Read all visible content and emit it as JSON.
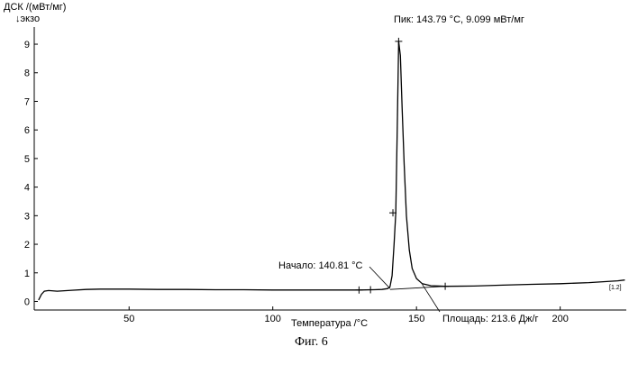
{
  "chart_data": {
    "type": "line",
    "ylabel_line1": "ДСК /(мВт/мг)",
    "ylabel_line2": "↓экзо",
    "xlabel": "Температура /°C",
    "caption": "Фиг. 6",
    "xlim": [
      17,
      223
    ],
    "ylim": [
      -0.3,
      9.6
    ],
    "x_ticks": [
      50,
      100,
      150,
      200
    ],
    "y_ticks": [
      0,
      1,
      2,
      3,
      4,
      5,
      6,
      7,
      8,
      9
    ],
    "series": [
      {
        "points": [
          [
            18.5,
            0.05
          ],
          [
            19.5,
            0.25
          ],
          [
            20.5,
            0.36
          ],
          [
            22,
            0.38
          ],
          [
            25,
            0.36
          ],
          [
            30,
            0.39
          ],
          [
            35,
            0.42
          ],
          [
            40,
            0.43
          ],
          [
            50,
            0.43
          ],
          [
            60,
            0.42
          ],
          [
            70,
            0.42
          ],
          [
            80,
            0.41
          ],
          [
            90,
            0.41
          ],
          [
            100,
            0.4
          ],
          [
            110,
            0.4
          ],
          [
            120,
            0.4
          ],
          [
            130,
            0.4
          ],
          [
            135,
            0.41
          ],
          [
            138,
            0.42
          ],
          [
            140,
            0.45
          ],
          [
            140.8,
            0.52
          ],
          [
            141.5,
            0.9
          ],
          [
            142.2,
            2.0
          ],
          [
            142.8,
            3.1
          ],
          [
            143.3,
            6.0
          ],
          [
            143.79,
            9.099
          ],
          [
            144.4,
            8.6
          ],
          [
            145.0,
            6.8
          ],
          [
            145.7,
            4.8
          ],
          [
            146.5,
            3.0
          ],
          [
            147.5,
            1.8
          ],
          [
            148.5,
            1.15
          ],
          [
            150,
            0.8
          ],
          [
            152,
            0.62
          ],
          [
            155,
            0.55
          ],
          [
            160,
            0.53
          ],
          [
            170,
            0.54
          ],
          [
            180,
            0.57
          ],
          [
            190,
            0.6
          ],
          [
            200,
            0.62
          ],
          [
            210,
            0.66
          ],
          [
            220,
            0.72
          ],
          [
            222.5,
            0.75
          ]
        ]
      }
    ],
    "baseline": [
      [
        140.81,
        0.42
      ],
      [
        160,
        0.53
      ]
    ],
    "markers": [
      [
        130,
        0.4
      ],
      [
        134,
        0.41
      ],
      [
        141.8,
        3.1
      ],
      [
        143.79,
        9.099
      ],
      [
        160,
        0.53
      ]
    ],
    "annotations": {
      "peak": "Пик: 143.79 °C, 9.099 мВт/мг",
      "onset": "Начало: 140.81 °C",
      "area": "Площадь: 213.6 Дж/г",
      "curve_id": "[1.2]"
    }
  }
}
